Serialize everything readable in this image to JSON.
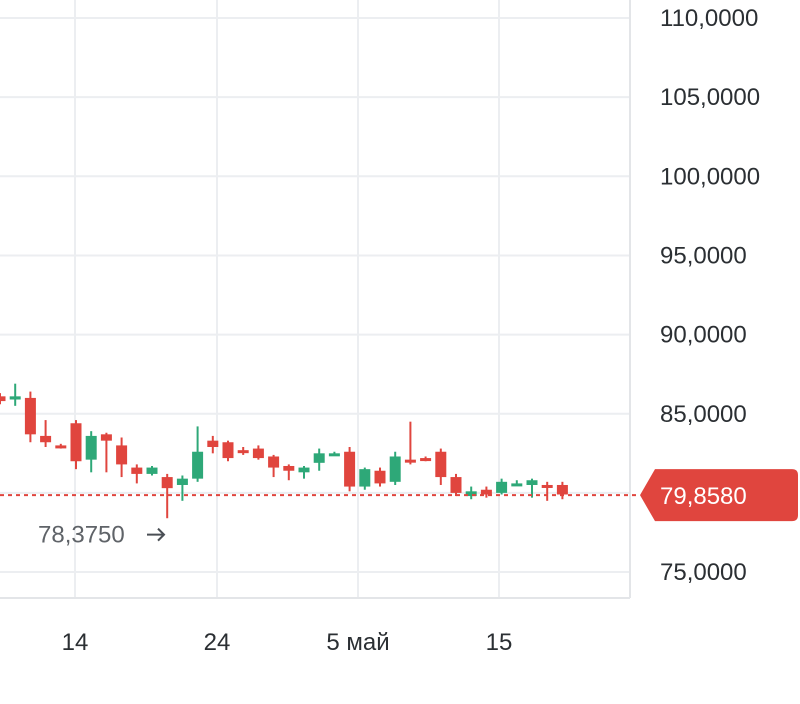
{
  "chart_data": {
    "type": "candlestick",
    "y_ticks": [
      "110,0000",
      "105,0000",
      "100,0000",
      "95,0000",
      "90,0000",
      "85,0000",
      "75,0000"
    ],
    "y_tick_values": [
      110,
      105,
      100,
      95,
      90,
      85,
      75
    ],
    "ylim": [
      73,
      111.2
    ],
    "x_ticks": [
      "14",
      "24",
      "5 май",
      "15"
    ],
    "current_price": {
      "label": "79,8580",
      "value": 79.858
    },
    "min_marker": {
      "label": "78,3750",
      "value": 78.375
    },
    "grid": true,
    "colors": {
      "up": "#2ea878",
      "down": "#e0453e",
      "grid": "#eceef1"
    },
    "candles": [
      {
        "o": 86.1,
        "h": 86.3,
        "l": 85.6,
        "c": 85.8
      },
      {
        "o": 85.9,
        "h": 86.9,
        "l": 85.5,
        "c": 86.1
      },
      {
        "o": 86.0,
        "h": 86.4,
        "l": 83.2,
        "c": 83.7
      },
      {
        "o": 83.6,
        "h": 84.6,
        "l": 82.9,
        "c": 83.2
      },
      {
        "o": 83.0,
        "h": 83.1,
        "l": 82.8,
        "c": 82.9
      },
      {
        "o": 84.4,
        "h": 84.6,
        "l": 81.5,
        "c": 82.0
      },
      {
        "o": 82.1,
        "h": 83.9,
        "l": 81.3,
        "c": 83.6
      },
      {
        "o": 83.7,
        "h": 83.8,
        "l": 81.3,
        "c": 83.3
      },
      {
        "o": 83.0,
        "h": 83.5,
        "l": 81.0,
        "c": 81.8
      },
      {
        "o": 81.6,
        "h": 81.8,
        "l": 80.6,
        "c": 81.2
      },
      {
        "o": 81.2,
        "h": 81.7,
        "l": 81.1,
        "c": 81.6
      },
      {
        "o": 81.0,
        "h": 81.2,
        "l": 78.4,
        "c": 80.3
      },
      {
        "o": 80.5,
        "h": 81.1,
        "l": 79.5,
        "c": 80.9
      },
      {
        "o": 80.9,
        "h": 84.2,
        "l": 80.7,
        "c": 82.6
      },
      {
        "o": 83.3,
        "h": 83.6,
        "l": 82.5,
        "c": 82.9
      },
      {
        "o": 83.2,
        "h": 83.3,
        "l": 82.0,
        "c": 82.2
      },
      {
        "o": 82.7,
        "h": 82.9,
        "l": 82.4,
        "c": 82.6
      },
      {
        "o": 82.8,
        "h": 83.0,
        "l": 82.1,
        "c": 82.2
      },
      {
        "o": 82.3,
        "h": 82.4,
        "l": 81.0,
        "c": 81.6
      },
      {
        "o": 81.7,
        "h": 81.8,
        "l": 80.8,
        "c": 81.4
      },
      {
        "o": 81.3,
        "h": 81.7,
        "l": 80.9,
        "c": 81.6
      },
      {
        "o": 81.9,
        "h": 82.8,
        "l": 81.4,
        "c": 82.5
      },
      {
        "o": 82.5,
        "h": 82.6,
        "l": 82.4,
        "c": 82.5
      },
      {
        "o": 82.6,
        "h": 82.9,
        "l": 80.1,
        "c": 80.4
      },
      {
        "o": 80.4,
        "h": 81.6,
        "l": 80.2,
        "c": 81.5
      },
      {
        "o": 81.4,
        "h": 81.6,
        "l": 80.4,
        "c": 80.6
      },
      {
        "o": 80.7,
        "h": 82.6,
        "l": 80.5,
        "c": 82.3
      },
      {
        "o": 82.1,
        "h": 84.5,
        "l": 81.8,
        "c": 82.0
      },
      {
        "o": 82.2,
        "h": 82.3,
        "l": 82.0,
        "c": 82.1
      },
      {
        "o": 82.6,
        "h": 82.8,
        "l": 80.5,
        "c": 81.0
      },
      {
        "o": 81.0,
        "h": 81.2,
        "l": 79.8,
        "c": 80.0
      },
      {
        "o": 79.8,
        "h": 80.4,
        "l": 79.6,
        "c": 80.1
      },
      {
        "o": 80.2,
        "h": 80.4,
        "l": 79.7,
        "c": 79.9
      },
      {
        "o": 80.0,
        "h": 80.9,
        "l": 79.9,
        "c": 80.7
      },
      {
        "o": 80.6,
        "h": 80.8,
        "l": 80.5,
        "c": 80.6
      },
      {
        "o": 80.5,
        "h": 80.9,
        "l": 79.7,
        "c": 80.8
      },
      {
        "o": 80.5,
        "h": 80.7,
        "l": 79.5,
        "c": 80.4
      },
      {
        "o": 80.5,
        "h": 80.7,
        "l": 79.6,
        "c": 79.9
      }
    ]
  }
}
